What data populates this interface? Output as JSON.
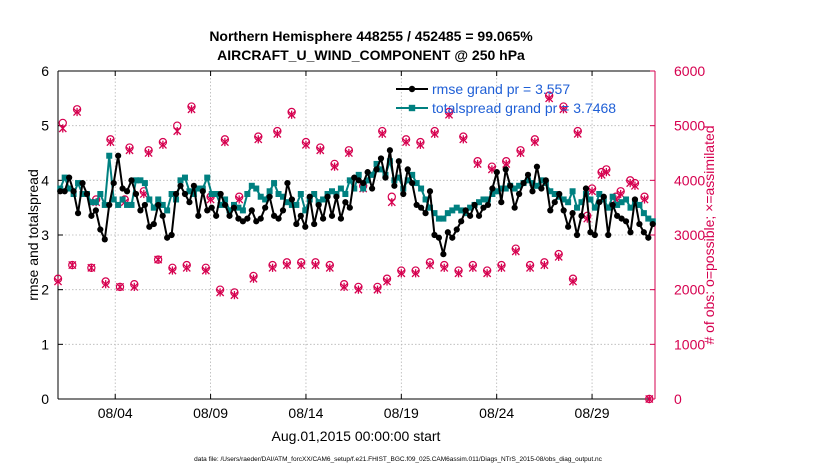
{
  "footer": {
    "datafile": "data file: /Users/raeder/DAI/ATM_forcXX/CAM6_setup/f.e21.FHIST_BGC.f09_025.CAM6assim.011/Diags_NTrS_2015-08/obs_diag_output.nc"
  },
  "colors": {
    "rmse": "#000000",
    "spread": "#008080",
    "obs": "#d6004f",
    "legend_text": "#1f5fd6"
  },
  "chart_data": {
    "type": "line",
    "title": "Northern Hemisphere 448255 / 452485 = 99.065%",
    "subtitle": "AIRCRAFT_U_WIND_COMPONENT @ 250 hPa",
    "xlabel": "Aug.01,2015 00:00:00 start",
    "ylabel": "rmse and totalspread",
    "ylabel_right": "# of obs: o=possible; ×=assimilated",
    "xlim": [
      0,
      31.3
    ],
    "ylim": [
      0,
      6
    ],
    "ylim_right": [
      0,
      6000
    ],
    "y_ticks": [
      "0",
      "1",
      "2",
      "3",
      "4",
      "5",
      "6"
    ],
    "y_ticks_right": [
      "0",
      "1000",
      "2000",
      "3000",
      "4000",
      "5000",
      "6000"
    ],
    "x_ticks": [
      {
        "pos": 3,
        "label": "08/04"
      },
      {
        "pos": 8,
        "label": "08/09"
      },
      {
        "pos": 13,
        "label": "08/14"
      },
      {
        "pos": 18,
        "label": "08/19"
      },
      {
        "pos": 23,
        "label": "08/24"
      },
      {
        "pos": 28,
        "label": "08/29"
      }
    ],
    "grid": true,
    "legend": [
      {
        "name": "rmse",
        "text": "rmse grand pr = 3.557"
      },
      {
        "name": "totalspread",
        "text": "totalspread grand pr = 3.7468"
      }
    ],
    "series": [
      {
        "name": "rmse",
        "values": [
          3.8,
          3.8,
          4.05,
          3.8,
          3.4,
          3.95,
          3.75,
          3.35,
          3.45,
          3.1,
          2.92,
          3.55,
          3.95,
          4.45,
          3.85,
          3.8,
          4.0,
          3.75,
          3.45,
          3.55,
          3.15,
          3.2,
          3.55,
          3.35,
          2.95,
          3.0,
          3.75,
          3.9,
          3.75,
          3.6,
          3.9,
          3.35,
          3.8,
          3.45,
          3.5,
          3.35,
          3.75,
          3.55,
          3.35,
          3.5,
          3.3,
          3.25,
          3.3,
          3.45,
          3.25,
          3.3,
          3.5,
          3.7,
          3.35,
          3.3,
          3.45,
          3.95,
          3.65,
          3.2,
          3.35,
          3.15,
          3.7,
          3.2,
          3.55,
          3.3,
          3.7,
          3.35,
          3.7,
          3.3,
          3.6,
          3.5,
          4.05,
          4.0,
          3.95,
          4.15,
          3.85,
          4.2,
          4.4,
          4.05,
          4.55,
          3.9,
          4.35,
          3.75,
          4.2,
          3.95,
          3.55,
          3.5,
          3.4,
          3.8,
          3.0,
          2.95,
          2.65,
          3.05,
          2.95,
          3.1,
          3.25,
          3.45,
          3.35,
          3.55,
          3.35,
          3.5,
          3.55,
          3.85,
          4.15,
          3.6,
          4.2,
          3.9,
          3.5,
          3.75,
          3.95,
          4.1,
          3.8,
          4.25,
          3.85,
          4.0,
          3.45,
          3.6,
          3.75,
          3.45,
          3.15,
          3.4,
          3.0,
          3.35,
          3.85,
          3.05,
          3.0,
          3.6,
          3.7,
          3.0,
          3.55,
          3.35,
          3.3,
          3.25,
          3.05,
          3.65,
          3.2,
          3.05,
          2.95,
          3.2
        ]
      },
      {
        "name": "totalspread",
        "values": [
          3.85,
          4.05,
          3.85,
          3.75,
          3.95,
          3.75,
          3.75,
          3.6,
          3.6,
          3.75,
          3.55,
          4.45,
          3.65,
          3.55,
          3.65,
          3.55,
          3.55,
          4.0,
          4.0,
          3.95,
          3.65,
          3.5,
          3.65,
          3.55,
          3.45,
          3.75,
          3.65,
          4.0,
          4.05,
          3.8,
          3.75,
          3.85,
          3.85,
          4.05,
          3.75,
          3.75,
          3.55,
          3.65,
          3.45,
          3.55,
          3.5,
          3.45,
          3.75,
          3.9,
          3.85,
          3.7,
          3.65,
          3.8,
          3.95,
          3.75,
          3.7,
          3.6,
          3.55,
          3.55,
          3.75,
          3.45,
          3.65,
          3.75,
          3.6,
          3.65,
          3.75,
          3.8,
          3.75,
          3.85,
          3.75,
          4.0,
          3.85,
          4.1,
          3.85,
          4.0,
          4.1,
          4.3,
          4.2,
          4.1,
          4.35,
          4.0,
          4.05,
          3.85,
          4.0,
          4.1,
          3.95,
          3.85,
          3.65,
          3.5,
          3.4,
          3.3,
          3.3,
          3.4,
          3.45,
          3.5,
          3.45,
          3.4,
          3.5,
          3.55,
          3.6,
          3.65,
          3.65,
          3.75,
          3.8,
          3.85,
          3.85,
          3.9,
          3.85,
          3.9,
          3.95,
          4.0,
          3.95,
          3.9,
          4.0,
          3.95,
          3.8,
          3.75,
          3.7,
          3.65,
          3.6,
          3.8,
          3.5,
          3.6,
          3.75,
          3.65,
          3.5,
          3.75,
          3.65,
          3.5,
          3.7,
          3.55,
          3.6,
          3.65,
          3.5,
          3.6,
          3.55,
          3.4,
          3.3,
          3.25
        ]
      },
      {
        "name": "obs_possible",
        "axis": "right",
        "x": [
          0.0,
          0.25,
          0.75,
          1.0,
          1.75,
          2.0,
          2.5,
          2.75,
          3.25,
          3.5,
          3.75,
          4.0,
          4.5,
          4.75,
          5.25,
          5.5,
          6.0,
          6.25,
          6.75,
          7.0,
          7.75,
          8.0,
          8.5,
          8.75,
          9.25,
          9.5,
          10.25,
          10.5,
          11.25,
          11.5,
          12.0,
          12.25,
          12.75,
          13.0,
          13.5,
          13.75,
          14.25,
          14.5,
          15.0,
          15.25,
          15.75,
          16.0,
          16.75,
          17.0,
          17.25,
          17.5,
          18.0,
          18.25,
          18.75,
          19.0,
          19.5,
          19.75,
          20.25,
          20.5,
          21.0,
          21.25,
          21.75,
          22.0,
          22.5,
          22.75,
          23.25,
          23.5,
          24.0,
          24.25,
          24.75,
          25.0,
          25.5,
          25.75,
          26.25,
          26.5,
          27.0,
          27.25,
          27.75,
          28.0,
          28.5,
          28.75,
          29.25,
          29.5,
          30.0,
          30.25,
          30.75,
          31.0
        ],
        "values": [
          2200,
          5050,
          2450,
          5300,
          2400,
          3650,
          2150,
          4750,
          2050,
          3650,
          4600,
          2100,
          3800,
          4550,
          2550,
          4700,
          2400,
          5000,
          2450,
          5350,
          2400,
          3700,
          2000,
          4750,
          1950,
          3700,
          2250,
          4800,
          2450,
          4900,
          2500,
          5250,
          2500,
          4700,
          2500,
          4600,
          2450,
          4300,
          2100,
          4550,
          2050,
          3900,
          2050,
          4900,
          2200,
          3700,
          2350,
          4750,
          2350,
          4700,
          2500,
          4900,
          2450,
          5250,
          2350,
          4800,
          2450,
          4350,
          2350,
          4250,
          2450,
          4350,
          2750,
          4550,
          2450,
          4750,
          2500,
          5550,
          2650,
          5350,
          2200,
          4900,
          3350,
          3850,
          4150,
          4200,
          3700,
          3800,
          4000,
          3950,
          3700,
          0
        ]
      },
      {
        "name": "obs_assimilated",
        "axis": "right",
        "x": [
          0.0,
          0.25,
          0.75,
          1.0,
          1.75,
          2.0,
          2.5,
          2.75,
          3.25,
          3.5,
          3.75,
          4.0,
          4.5,
          4.75,
          5.25,
          5.5,
          6.0,
          6.25,
          6.75,
          7.0,
          7.75,
          8.0,
          8.5,
          8.75,
          9.25,
          9.5,
          10.25,
          10.5,
          11.25,
          11.5,
          12.0,
          12.25,
          12.75,
          13.0,
          13.5,
          13.75,
          14.25,
          14.5,
          15.0,
          15.25,
          15.75,
          16.0,
          16.75,
          17.0,
          17.25,
          17.5,
          18.0,
          18.25,
          18.75,
          19.0,
          19.5,
          19.75,
          20.25,
          20.5,
          21.0,
          21.25,
          21.75,
          22.0,
          22.5,
          22.75,
          23.25,
          23.5,
          24.0,
          24.25,
          24.75,
          25.0,
          25.5,
          25.75,
          26.25,
          26.5,
          27.0,
          27.25,
          27.75,
          28.0,
          28.5,
          28.75,
          29.25,
          29.5,
          30.0,
          30.25,
          30.75,
          31.0
        ],
        "values": [
          2150,
          4950,
          2450,
          5250,
          2400,
          3600,
          2100,
          4700,
          2050,
          3600,
          4550,
          2050,
          3750,
          4500,
          2550,
          4650,
          2350,
          4900,
          2400,
          5300,
          2350,
          3650,
          1950,
          4700,
          1900,
          3650,
          2200,
          4750,
          2400,
          4850,
          2450,
          5200,
          2450,
          4650,
          2450,
          4550,
          2400,
          4250,
          2050,
          4500,
          2000,
          3850,
          2000,
          4850,
          2150,
          3600,
          2300,
          4700,
          2300,
          4650,
          2450,
          4850,
          2400,
          5200,
          2300,
          4750,
          2400,
          4300,
          2300,
          4200,
          2400,
          4300,
          2700,
          4500,
          2400,
          4700,
          2450,
          5500,
          2600,
          5300,
          2150,
          4850,
          3300,
          3800,
          4100,
          4150,
          3650,
          3750,
          3950,
          3900,
          3650,
          0
        ]
      }
    ]
  }
}
